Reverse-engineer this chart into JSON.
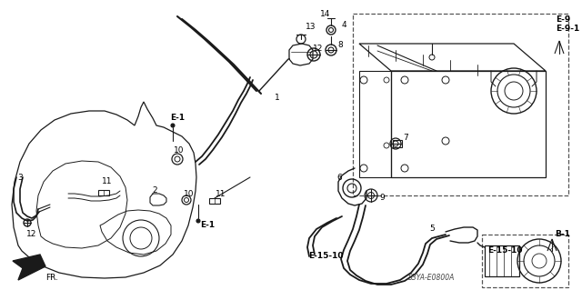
{
  "bg_color": "#ffffff",
  "diagram_code": "S3YA-E0800A",
  "lc": "#1a1a1a",
  "dc": "#555555",
  "tc": "#000000",
  "fs": 6.5,
  "fs_sm": 5.5,
  "labels": {
    "E1_top": "E-1",
    "E1_bottom": "E-1",
    "E9": "E-9",
    "E91": "E-9-1",
    "E1510_left": "E-15-10",
    "E1510_right": "E-15-10",
    "B1": "B-1",
    "FR": "FR.",
    "n1": "1",
    "n2": "2",
    "n3": "3",
    "n4": "4",
    "n5": "5",
    "n6": "6",
    "n7": "7",
    "n8": "8",
    "n9": "9",
    "n10a": "10",
    "n10b": "10",
    "n11a": "11",
    "n11b": "11",
    "n12a": "12",
    "n12b": "12",
    "n13": "13",
    "n14": "14"
  }
}
